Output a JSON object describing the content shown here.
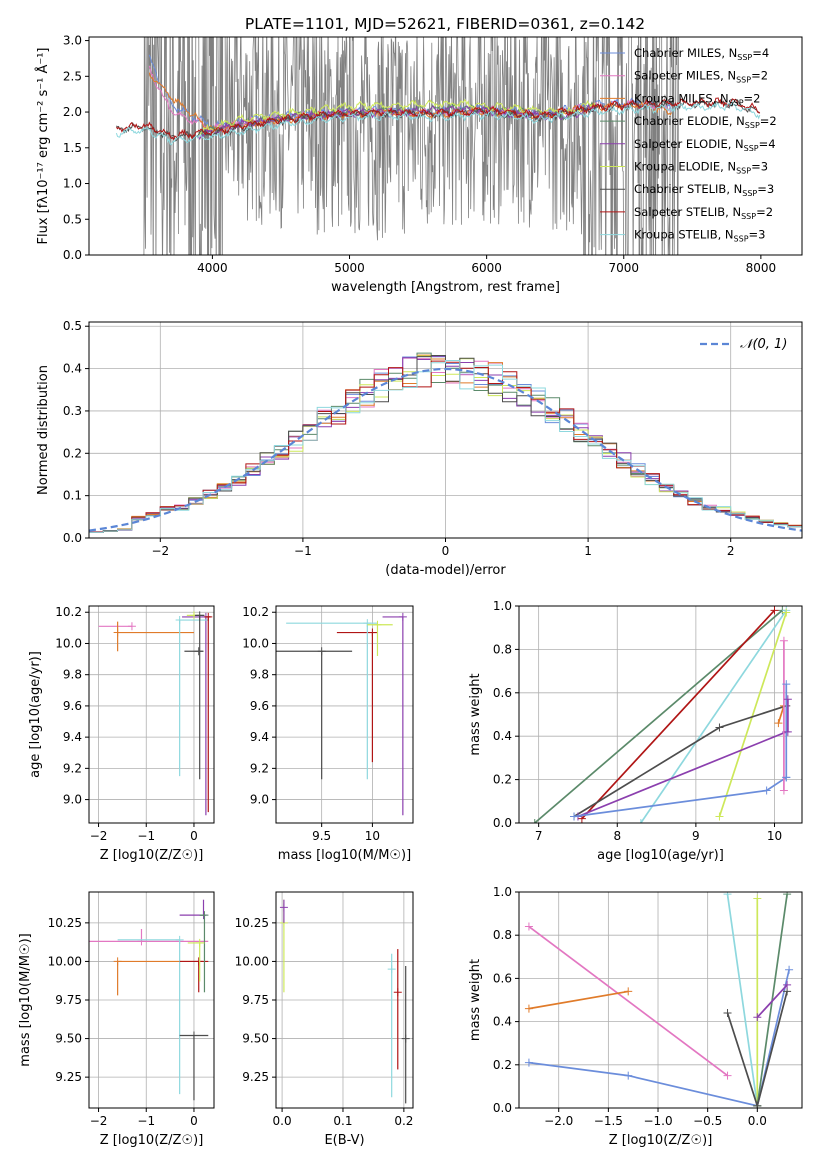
{
  "page": {
    "title": "PLATE=1101, MJD=52621, FIBERID=0361, z=0.142"
  },
  "chart_data": [
    {
      "id": "spectrum",
      "type": "line",
      "xlabel": "wavelength [Angstrom, rest frame]",
      "ylabel": "Flux [fλ10⁻¹⁷ erg cm⁻² s⁻¹ Å⁻¹]",
      "xlim": [
        3100,
        8300
      ],
      "ylim": [
        0,
        3.05
      ],
      "xticks": [
        4000,
        5000,
        6000,
        7000,
        8000
      ],
      "yticks": [
        0.0,
        0.5,
        1.0,
        1.5,
        2.0,
        2.5,
        3.0
      ],
      "grid": false,
      "legend_position": "upper-right",
      "data_region": [
        3500,
        7400
      ],
      "series": [
        {
          "name": "Chabrier MILES, N_SSP=4",
          "label_main": "Chabrier MILES, N",
          "label_sub": "SSP",
          "label_tail": "=4",
          "color": "#6b8ddb",
          "x": [
            3540,
            3700,
            4000,
            4400,
            4800,
            5200,
            5600,
            6000,
            6400,
            6800,
            7100,
            7350
          ],
          "y": [
            2.75,
            2.1,
            1.8,
            1.92,
            1.98,
            2.02,
            2.0,
            2.05,
            1.98,
            2.1,
            2.15,
            2.05
          ]
        },
        {
          "name": "Salpeter MILES, N_SSP=2",
          "label_main": "Salpeter MILES, N",
          "label_sub": "SSP",
          "label_tail": "=2",
          "color": "#e377c2",
          "x": [
            3540,
            3700,
            4000,
            4400,
            4800,
            5200,
            5600,
            6000,
            6400,
            6800,
            7100,
            7350
          ],
          "y": [
            2.6,
            2.0,
            1.78,
            1.9,
            1.97,
            2.0,
            1.98,
            2.03,
            1.96,
            2.08,
            2.12,
            2.02
          ]
        },
        {
          "name": "Kroupa MILES, N_SSP=2",
          "label_main": "Kroupa MILES, N",
          "label_sub": "SSP",
          "label_tail": "=2",
          "color": "#e07b2a",
          "x": [
            3540,
            3700,
            4000,
            4400,
            4800,
            5200,
            5600,
            6000,
            6400,
            6800,
            7100,
            7350
          ],
          "y": [
            2.55,
            2.2,
            1.75,
            1.88,
            1.95,
            2.0,
            1.97,
            2.02,
            1.95,
            2.07,
            2.1,
            2.0
          ]
        },
        {
          "name": "Chabrier ELODIE, N_SSP=2",
          "label_main": "Chabrier ELODIE, N",
          "label_sub": "SSP",
          "label_tail": "=2",
          "color": "#5b8a6a",
          "x": [
            3900,
            4200,
            4600,
            5000,
            5400,
            5800,
            6200,
            6600,
            6800
          ],
          "y": [
            1.7,
            1.85,
            1.95,
            2.0,
            2.02,
            2.06,
            2.0,
            1.95,
            2.1
          ]
        },
        {
          "name": "Salpeter ELODIE, N_SSP=4",
          "label_main": "Salpeter ELODIE, N",
          "label_sub": "SSP",
          "label_tail": "=4",
          "color": "#8b3fae",
          "x": [
            3900,
            4200,
            4600,
            5000,
            5400,
            5800,
            6200,
            6600,
            6800
          ],
          "y": [
            1.68,
            1.83,
            1.93,
            1.98,
            2.0,
            2.04,
            1.98,
            1.93,
            2.08
          ]
        },
        {
          "name": "Kroupa ELODIE, N_SSP=3",
          "label_main": "Kroupa ELODIE, N",
          "label_sub": "SSP",
          "label_tail": "=3",
          "color": "#cde85a",
          "x": [
            3900,
            4200,
            4600,
            5000,
            5400,
            5800,
            6200,
            6600,
            6800
          ],
          "y": [
            1.72,
            1.9,
            2.0,
            2.08,
            2.1,
            2.12,
            2.05,
            2.0,
            2.15
          ]
        },
        {
          "name": "Chabrier STELIB, N_SSP=3",
          "label_main": "Chabrier STELIB, N",
          "label_sub": "SSP",
          "label_tail": "=3",
          "color": "#4d4d4d",
          "x": [
            3300,
            3500,
            3700,
            4000,
            4400,
            4800,
            5200,
            5600,
            6000,
            6400,
            6800,
            7200,
            7800,
            8000
          ],
          "y": [
            1.75,
            1.8,
            1.65,
            1.7,
            1.85,
            1.95,
            1.98,
            1.97,
            2.0,
            1.93,
            2.05,
            2.1,
            2.12,
            2.0
          ]
        },
        {
          "name": "Salpeter STELIB, N_SSP=2",
          "label_main": "Salpeter STELIB, N",
          "label_sub": "SSP",
          "label_tail": "=2",
          "color": "#b01515",
          "x": [
            3300,
            3500,
            3700,
            4000,
            4400,
            4800,
            5200,
            5600,
            6000,
            6400,
            6800,
            7200,
            7800,
            8000
          ],
          "y": [
            1.78,
            1.82,
            1.67,
            1.72,
            1.87,
            1.96,
            2.0,
            1.98,
            2.02,
            1.95,
            2.07,
            2.12,
            2.14,
            2.02
          ]
        },
        {
          "name": "Kroupa STELIB, N_SSP=3",
          "label_main": "Kroupa STELIB, N",
          "label_sub": "SSP",
          "label_tail": "=3",
          "color": "#8ed8de",
          "x": [
            3300,
            3500,
            3700,
            4000,
            4400,
            4800,
            5200,
            5600,
            6000,
            6400,
            6800,
            7200,
            7800,
            8000
          ],
          "y": [
            1.7,
            1.76,
            1.6,
            1.65,
            1.8,
            1.9,
            1.94,
            1.93,
            1.96,
            1.9,
            2.0,
            2.05,
            2.08,
            1.95
          ]
        }
      ]
    },
    {
      "id": "residuals",
      "type": "line",
      "xlabel": "(data-model)/error",
      "ylabel": "Normed distribution",
      "xlim": [
        -2.5,
        2.5
      ],
      "ylim": [
        0,
        0.51
      ],
      "xticks": [
        -2,
        -1,
        0,
        1,
        2
      ],
      "yticks": [
        0.0,
        0.1,
        0.2,
        0.3,
        0.4,
        0.5
      ],
      "grid": true,
      "legend_position": "upper-right",
      "legend_label": "𝒩(0, 1)",
      "gaussian": {
        "mean": 0,
        "sigma": 1,
        "color": "#5b86d6"
      },
      "bin_width": 0.1,
      "hist_colors": [
        "#6b8ddb",
        "#e377c2",
        "#e07b2a",
        "#5b8a6a",
        "#8b3fae",
        "#cde85a",
        "#4d4d4d",
        "#b01515",
        "#8ed8de"
      ]
    },
    {
      "id": "z-age",
      "type": "scatter",
      "xlabel": "Z [log10(Z/Z☉)]",
      "ylabel": "age [log10(age/yr)]",
      "xlim": [
        -2.2,
        0.42
      ],
      "ylim": [
        8.85,
        10.24
      ],
      "xticks": [
        -2,
        -1,
        0
      ],
      "yticks": [
        9.0,
        9.2,
        9.4,
        9.6,
        9.8,
        10.0,
        10.2
      ],
      "grid": true,
      "points": [
        {
          "x": -1.3,
          "y": 10.11,
          "xerr": [
            0.7,
            0.0
          ],
          "yerr": [
            0.0,
            0.0
          ],
          "color": "#e377c2"
        },
        {
          "x": -1.6,
          "y": 10.07,
          "xerr": [
            0.0,
            1.6
          ],
          "yerr": [
            0.12,
            0.07
          ],
          "color": "#e07b2a"
        },
        {
          "x": 0.25,
          "y": 10.17,
          "xerr": [
            0.5,
            0.1
          ],
          "yerr": [
            1.27,
            0.0
          ],
          "color": "#8b3fae"
        },
        {
          "x": -0.3,
          "y": 10.15,
          "xerr": [
            0.0,
            0.6
          ],
          "yerr": [
            1.0,
            0.0
          ],
          "color": "#8ed8de"
        },
        {
          "x": 0.1,
          "y": 9.95,
          "xerr": [
            0.3,
            0.1
          ],
          "yerr": [
            0.0,
            0.0
          ],
          "color": "#4d4d4d"
        },
        {
          "x": 0.0,
          "y": 10.18,
          "xerr": [
            0.15,
            0.15
          ],
          "yerr": [
            0.0,
            0.0
          ],
          "color": "#cde85a"
        },
        {
          "x": 0.12,
          "y": 10.18,
          "xerr": [
            0.1,
            0.1
          ],
          "yerr": [
            1.05,
            0.0
          ],
          "color": "#4d4d4d"
        },
        {
          "x": 0.3,
          "y": 10.17,
          "xerr": [
            0.05,
            0.05
          ],
          "yerr": [
            1.25,
            0.0
          ],
          "color": "#b01515"
        }
      ]
    },
    {
      "id": "mass-age",
      "type": "scatter",
      "xlabel": "mass [log10(M/M☉)]",
      "ylabel": "",
      "xlim": [
        9.05,
        10.4
      ],
      "ylim": [
        8.85,
        10.24
      ],
      "xticks": [
        9.5,
        10.0
      ],
      "yticks": [
        9.0,
        9.2,
        9.4,
        9.6,
        9.8,
        10.0,
        10.2
      ],
      "grid": true,
      "points": [
        {
          "x": 9.5,
          "y": 9.95,
          "xerr": [
            0.45,
            0.3
          ],
          "yerr": [
            0.82,
            0.0
          ],
          "color": "#4d4d4d"
        },
        {
          "x": 10.0,
          "y": 10.07,
          "xerr": [
            0.35,
            0.05
          ],
          "yerr": [
            0.83,
            0.0
          ],
          "color": "#b01515"
        },
        {
          "x": 9.95,
          "y": 10.13,
          "xerr": [
            0.8,
            0.1
          ],
          "yerr": [
            1.0,
            0.0
          ],
          "color": "#8ed8de"
        },
        {
          "x": 10.3,
          "y": 10.17,
          "xerr": [
            0.2,
            0.0
          ],
          "yerr": [
            1.27,
            0.0
          ],
          "color": "#8b3fae"
        },
        {
          "x": 10.05,
          "y": 10.12,
          "xerr": [
            0.1,
            0.15
          ],
          "yerr": [
            0.2,
            0.0
          ],
          "color": "#cde85a"
        }
      ]
    },
    {
      "id": "age-weight",
      "type": "line",
      "xlabel": "age [log10(age/yr)]",
      "ylabel": "mass weight",
      "xlim": [
        6.75,
        10.35
      ],
      "ylim": [
        0,
        1.0
      ],
      "xticks": [
        7,
        8,
        9,
        10
      ],
      "yticks": [
        0.0,
        0.2,
        0.4,
        0.6,
        0.8,
        1.0
      ],
      "grid": true,
      "series": [
        {
          "color": "#5b8a6a",
          "x": [
            6.95,
            10.1
          ],
          "y": [
            0.0,
            0.98
          ]
        },
        {
          "color": "#b01515",
          "x": [
            7.55,
            10.0
          ],
          "y": [
            0.02,
            0.98
          ]
        },
        {
          "color": "#8ed8de",
          "x": [
            8.3,
            10.15
          ],
          "y": [
            0.0,
            0.98
          ]
        },
        {
          "color": "#cde85a",
          "x": [
            9.3,
            10.15
          ],
          "y": [
            0.03,
            0.97
          ]
        },
        {
          "color": "#4d4d4d",
          "x": [
            7.45,
            9.3,
            10.15
          ],
          "y": [
            0.03,
            0.44,
            0.54
          ]
        },
        {
          "color": "#8b3fae",
          "x": [
            7.5,
            10.15
          ],
          "y": [
            0.03,
            0.42
          ]
        },
        {
          "color": "#6b8ddb",
          "x": [
            7.45,
            9.9,
            10.15
          ],
          "y": [
            0.03,
            0.15,
            0.21
          ]
        },
        {
          "color": "#e07b2a",
          "x": [
            10.05,
            10.12
          ],
          "y": [
            0.46,
            0.54
          ]
        },
        {
          "color": "#e377c2",
          "x": [
            10.12,
            10.12
          ],
          "y": [
            0.15,
            0.84
          ]
        },
        {
          "color": "#6b8ddb",
          "x": [
            10.15,
            10.15
          ],
          "y": [
            0.21,
            0.64
          ]
        },
        {
          "color": "#8b3fae",
          "x": [
            10.17,
            10.17
          ],
          "y": [
            0.42,
            0.57
          ]
        }
      ]
    },
    {
      "id": "z-mass",
      "type": "scatter",
      "xlabel": "Z [log10(Z/Z☉)]",
      "ylabel": "mass [log10(M/M☉)]",
      "xlim": [
        -2.2,
        0.42
      ],
      "ylim": [
        9.05,
        10.45
      ],
      "xticks": [
        -2,
        -1,
        0
      ],
      "yticks": [
        9.25,
        9.5,
        9.75,
        10.0,
        10.25
      ],
      "grid": true,
      "points": [
        {
          "x": -1.6,
          "y": 10.0,
          "xerr": [
            0.0,
            1.6
          ],
          "yerr": [
            0.22,
            0.0
          ],
          "color": "#e07b2a"
        },
        {
          "x": -1.1,
          "y": 10.13,
          "xerr": [
            1.1,
            1.4
          ],
          "yerr": [
            0.0,
            0.08
          ],
          "color": "#e377c2"
        },
        {
          "x": -0.3,
          "y": 10.14,
          "xerr": [
            1.3,
            0.0
          ],
          "yerr": [
            1.0,
            0.0
          ],
          "color": "#8ed8de"
        },
        {
          "x": 0.0,
          "y": 9.52,
          "xerr": [
            0.3,
            0.3
          ],
          "yerr": [
            0.42,
            0.0
          ],
          "color": "#4d4d4d"
        },
        {
          "x": 0.1,
          "y": 10.0,
          "xerr": [
            0.4,
            0.2
          ],
          "yerr": [
            0.2,
            0.0
          ],
          "color": "#b01515"
        },
        {
          "x": 0.2,
          "y": 10.3,
          "xerr": [
            0.5,
            0.05
          ],
          "yerr": [
            0.0,
            0.1
          ],
          "color": "#8b3fae"
        },
        {
          "x": 0.22,
          "y": 10.3,
          "xerr": [
            0.1,
            0.0
          ],
          "yerr": [
            0.5,
            0.0
          ],
          "color": "#5b8a6a"
        },
        {
          "x": 0.12,
          "y": 10.12,
          "xerr": [
            0.25,
            0.1
          ],
          "yerr": [
            0.25,
            0.0
          ],
          "color": "#cde85a"
        }
      ]
    },
    {
      "id": "ebv-mass",
      "type": "scatter",
      "xlabel": "E(B-V)",
      "ylabel": "",
      "xlim": [
        -0.01,
        0.215
      ],
      "ylim": [
        9.05,
        10.45
      ],
      "xticks": [
        0.0,
        0.1,
        0.2
      ],
      "yticks": [
        9.25,
        9.5,
        9.75,
        10.0,
        10.25
      ],
      "grid": true,
      "points": [
        {
          "x": 0.003,
          "y": 10.25,
          "xerr": [
            0.0,
            0.0
          ],
          "yerr": [
            0.45,
            0.15
          ],
          "color": "#cde85a"
        },
        {
          "x": 0.003,
          "y": 10.35,
          "xerr": [
            0.0,
            0.0
          ],
          "yerr": [
            0.1,
            0.05
          ],
          "color": "#8b3fae"
        },
        {
          "x": 0.18,
          "y": 9.95,
          "xerr": [
            0.0,
            0.0
          ],
          "yerr": [
            0.83,
            0.1
          ],
          "color": "#8ed8de"
        },
        {
          "x": 0.19,
          "y": 9.8,
          "xerr": [
            0.0,
            0.0
          ],
          "yerr": [
            0.5,
            0.28
          ],
          "color": "#b01515"
        },
        {
          "x": 0.203,
          "y": 9.5,
          "xerr": [
            0.0,
            0.0
          ],
          "yerr": [
            0.42,
            0.47
          ],
          "color": "#4d4d4d"
        }
      ]
    },
    {
      "id": "z-weight",
      "type": "line",
      "xlabel": "Z [log10(Z/Z☉)]",
      "ylabel": "mass weight",
      "xlim": [
        -2.4,
        0.45
      ],
      "ylim": [
        0,
        1.0
      ],
      "xticks": [
        -2.0,
        -1.5,
        -1.0,
        -0.5,
        0.0
      ],
      "yticks": [
        0.0,
        0.2,
        0.4,
        0.6,
        0.8,
        1.0
      ],
      "grid": true,
      "series": [
        {
          "color": "#e377c2",
          "x": [
            -2.3,
            -0.3
          ],
          "y": [
            0.84,
            0.15
          ]
        },
        {
          "color": "#e07b2a",
          "x": [
            -2.3,
            -1.3
          ],
          "y": [
            0.46,
            0.54
          ]
        },
        {
          "color": "#6b8ddb",
          "x": [
            -2.3,
            -1.3,
            0.0,
            0.32
          ],
          "y": [
            0.21,
            0.15,
            0.01,
            0.64
          ]
        },
        {
          "color": "#8ed8de",
          "x": [
            -0.3,
            0.0
          ],
          "y": [
            0.99,
            0.01
          ]
        },
        {
          "color": "#cde85a",
          "x": [
            0.0,
            0.0
          ],
          "y": [
            0.97,
            0.01
          ]
        },
        {
          "color": "#5b8a6a",
          "x": [
            0.0,
            0.3
          ],
          "y": [
            0.01,
            0.99
          ]
        },
        {
          "color": "#4d4d4d",
          "x": [
            -0.3,
            0.0,
            0.3
          ],
          "y": [
            0.44,
            0.01,
            0.54
          ]
        },
        {
          "color": "#8b3fae",
          "x": [
            0.0,
            0.3
          ],
          "y": [
            0.42,
            0.57
          ]
        }
      ]
    }
  ]
}
